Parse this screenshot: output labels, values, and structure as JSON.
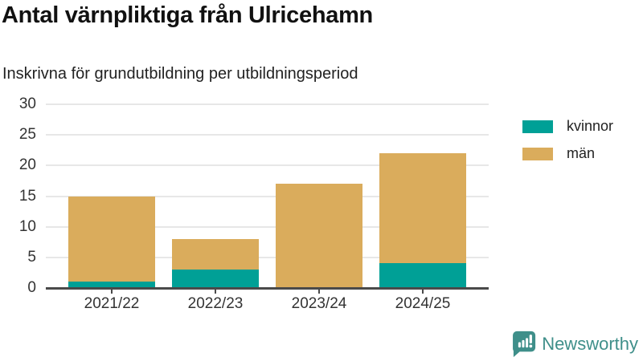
{
  "header": {
    "title": "Antal värnpliktiga från Ulricehamn",
    "subtitle": "Inskrivna för grundutbildning per utbildningsperiod"
  },
  "chart_data": {
    "type": "bar",
    "stacked": true,
    "title": "Antal värnpliktiga från Ulricehamn",
    "subtitle": "Inskrivna för grundutbildning per utbildningsperiod",
    "categories": [
      "2021/22",
      "2022/23",
      "2023/24",
      "2024/25"
    ],
    "series": [
      {
        "name": "kvinnor",
        "color": "#00a096",
        "values": [
          1,
          3,
          0,
          4
        ]
      },
      {
        "name": "män",
        "color": "#daac5c",
        "values": [
          14,
          5,
          17,
          18
        ]
      }
    ],
    "totals": [
      15,
      8,
      17,
      22
    ],
    "xlabel": "",
    "ylabel": "",
    "ylim": [
      0,
      30
    ],
    "yticks": [
      0,
      5,
      10,
      15,
      20,
      25,
      30
    ],
    "grid": true,
    "legend_position": "right"
  },
  "branding": {
    "logo_text": "Newsworthy",
    "logo_icon": "bar-chart-speech-bubble-icon",
    "logo_color": "#3f8f8a"
  },
  "colors": {
    "kvinnor": "#00a096",
    "man": "#daac5c",
    "axis": "#4a4a4a",
    "gridline": "#e7e7e7",
    "brand": "#3f8f8a"
  }
}
